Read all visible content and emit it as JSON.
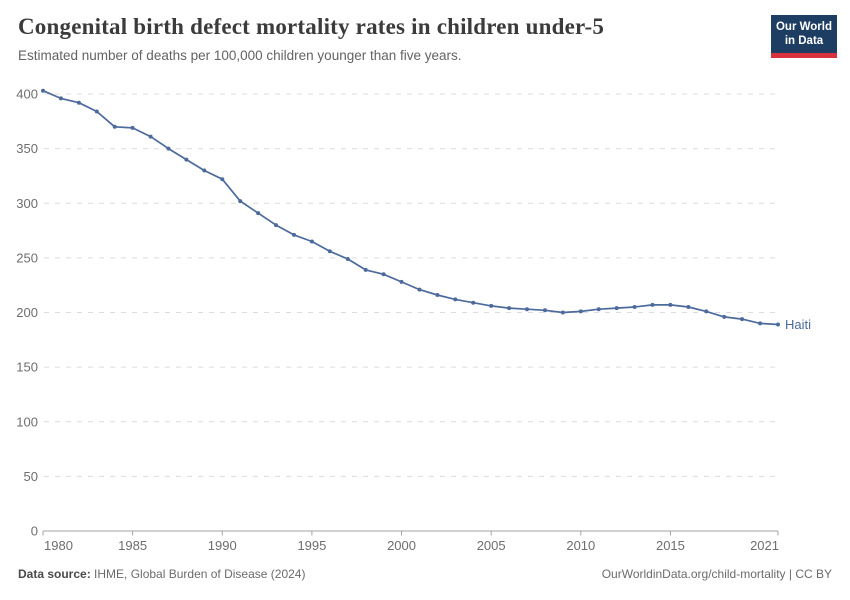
{
  "header": {
    "title": "Congenital birth defect mortality rates in children under-5",
    "subtitle": "Estimated number of deaths per 100,000 children younger than five years.",
    "logo": {
      "line1": "Our World",
      "line2": "in Data"
    }
  },
  "footer": {
    "source_label": "Data source:",
    "source_text": " IHME, Global Burden of Disease (2024)",
    "credit": "OurWorldinData.org/child-mortality | CC BY"
  },
  "colors": {
    "series_line": "#4c6a9c",
    "gridline": "#dcdcdc",
    "axis_line": "#a3a3a3",
    "tick_label": "#6e6e6e",
    "logo_navy": "#1d3d63",
    "logo_red": "#d8323f"
  },
  "chart_data": {
    "type": "line",
    "title": "Congenital birth defect mortality rates in children under-5",
    "subtitle": "Estimated number of deaths per 100,000 children younger than five years.",
    "xlabel": "",
    "ylabel": "",
    "xlim": [
      1980,
      2021
    ],
    "ylim": [
      0,
      400
    ],
    "grid": "horizontal-dashed",
    "legend_position": "end-of-line-label",
    "end_label": "Haiti",
    "xticks": [
      1980,
      1985,
      1990,
      1995,
      2000,
      2005,
      2010,
      2015,
      2021
    ],
    "yticks": [
      0,
      50,
      100,
      150,
      200,
      250,
      300,
      350,
      400
    ],
    "series": [
      {
        "name": "Haiti",
        "color": "#4c6a9c",
        "x": [
          1980,
          1981,
          1982,
          1983,
          1984,
          1985,
          1986,
          1987,
          1988,
          1989,
          1990,
          1991,
          1992,
          1993,
          1994,
          1995,
          1996,
          1997,
          1998,
          1999,
          2000,
          2001,
          2002,
          2003,
          2004,
          2005,
          2006,
          2007,
          2008,
          2009,
          2010,
          2011,
          2012,
          2013,
          2014,
          2015,
          2016,
          2017,
          2018,
          2019,
          2020,
          2021
        ],
        "values": [
          403,
          396,
          392,
          384,
          370,
          369,
          361,
          350,
          340,
          330,
          322,
          302,
          291,
          280,
          271,
          265,
          256,
          249,
          239,
          235,
          228,
          221,
          216,
          212,
          209,
          206,
          204,
          203,
          202,
          200,
          201,
          203,
          204,
          205,
          207,
          207,
          205,
          201,
          196,
          194,
          190,
          189
        ]
      }
    ]
  }
}
